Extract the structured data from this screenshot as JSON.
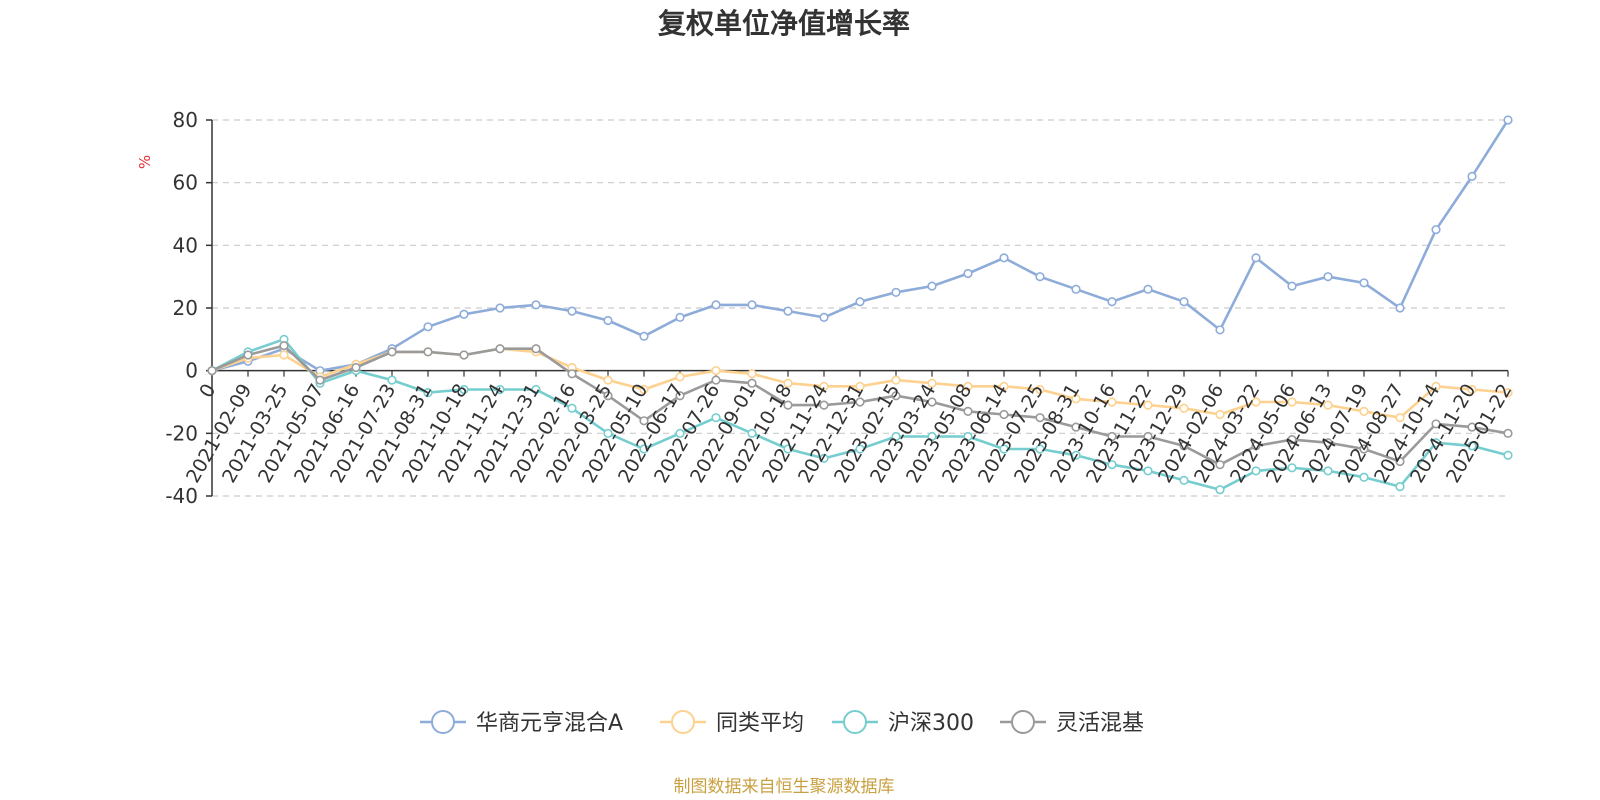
{
  "chart_data": {
    "type": "line",
    "title": "复权单位净值增长率",
    "ylabel": "%",
    "ylim": [
      -40,
      80
    ],
    "yticks": [
      "80",
      "60",
      "40",
      "20",
      "0",
      "-20",
      "-40"
    ],
    "ytick_values": [
      80,
      60,
      40,
      20,
      0,
      -20,
      -40
    ],
    "x_labels": [
      "0",
      "2021-02-09",
      "2021-03-25",
      "2021-05-07",
      "2021-06-16",
      "2021-07-23",
      "2021-08-31",
      "2021-10-18",
      "2021-11-24",
      "2021-12-31",
      "2022-02-16",
      "2022-03-25",
      "2022-05-10",
      "2022-06-17",
      "2022-07-26",
      "2022-09-01",
      "2022-10-18",
      "2022-11-24",
      "2022-12-31",
      "2023-02-15",
      "2023-03-24",
      "2023-05-08",
      "2023-06-14",
      "2023-07-25",
      "2023-08-31",
      "2023-10-16",
      "2023-11-22",
      "2023-12-29",
      "2024-02-06",
      "2024-03-22",
      "2024-05-06",
      "2024-06-13",
      "2024-07-19",
      "2024-08-27",
      "2024-10-14",
      "2024-11-20",
      "2025-01-22"
    ],
    "grid": true,
    "legend_position": "bottom",
    "series": [
      {
        "name": "华商元亨混合A",
        "color": "#8eacd9",
        "values": [
          0,
          3,
          7,
          0,
          2,
          7,
          14,
          18,
          20,
          21,
          19,
          16,
          11,
          17,
          21,
          21,
          19,
          17,
          22,
          25,
          27,
          31,
          36,
          30,
          26,
          22,
          26,
          22,
          13,
          36,
          27,
          30,
          28,
          20,
          45,
          62,
          80
        ]
      },
      {
        "name": "同类平均",
        "color": "#fdd18f",
        "values": [
          0,
          4,
          5,
          -2,
          2,
          6,
          6,
          5,
          7,
          6,
          1,
          -3,
          -6,
          -2,
          0,
          -1,
          -4,
          -5,
          -5,
          -3,
          -4,
          -5,
          -5,
          -6,
          -9,
          -10,
          -11,
          -12,
          -14,
          -10,
          -10,
          -11,
          -13,
          -15,
          -5,
          -6,
          -7
        ]
      },
      {
        "name": "沪深300",
        "color": "#76cdcf",
        "values": [
          0,
          6,
          10,
          -4,
          0,
          -3,
          -7,
          -6,
          -6,
          -6,
          -12,
          -20,
          -25,
          -20,
          -15,
          -20,
          -25,
          -28,
          -25,
          -21,
          -21,
          -21,
          -25,
          -25,
          -27,
          -30,
          -32,
          -35,
          -38,
          -32,
          -31,
          -32,
          -34,
          -37,
          -23,
          -24,
          -27
        ]
      },
      {
        "name": "灵活混基",
        "color": "#9a9a9a",
        "values": [
          0,
          5,
          8,
          -3,
          1,
          6,
          6,
          5,
          7,
          7,
          -1,
          -8,
          -16,
          -8,
          -3,
          -4,
          -11,
          -11,
          -10,
          -8,
          -10,
          -13,
          -14,
          -15,
          -18,
          -21,
          -21,
          -24,
          -30,
          -24,
          -22,
          -23,
          -25,
          -29,
          -17,
          -18,
          -20
        ]
      }
    ]
  },
  "source": "制图数据来自恒生聚源数据库",
  "colors": {
    "axis": "#333333",
    "grid": "#cccccc",
    "unit": "#e8303a",
    "source": "#c9a040"
  }
}
